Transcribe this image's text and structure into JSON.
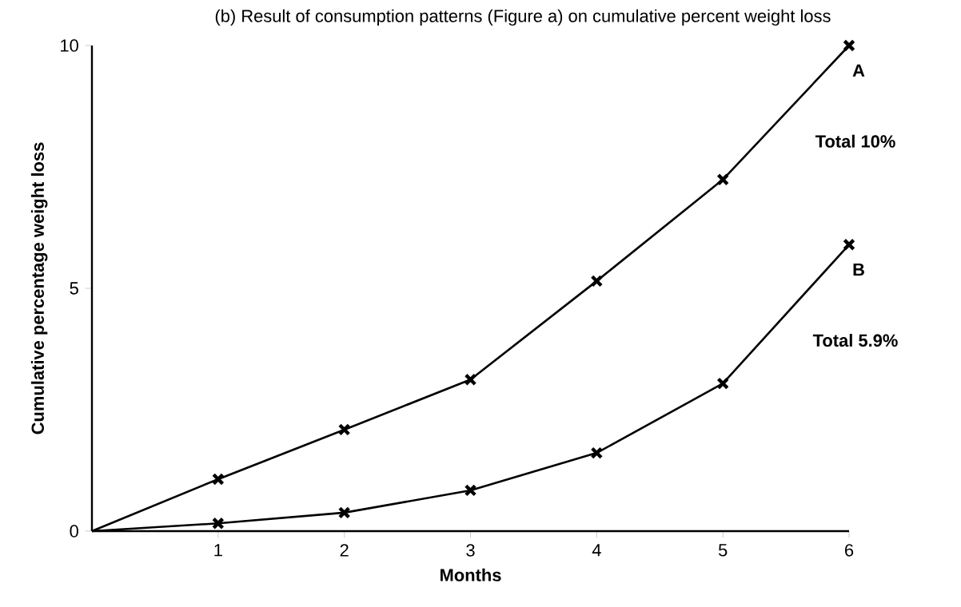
{
  "chart_data": {
    "type": "line",
    "title": "(b) Result of consumption patterns (Figure a) on cumulative percent weight loss",
    "xlabel": "Months",
    "ylabel": "Cumulative percentage weight loss",
    "x": [
      0,
      1,
      2,
      3,
      4,
      5,
      6
    ],
    "series": [
      {
        "name": "A",
        "color": "#000000",
        "values": [
          0,
          1.07,
          2.09,
          3.12,
          5.15,
          7.24,
          10.0
        ]
      },
      {
        "name": "B",
        "color": "#000000",
        "values": [
          0,
          0.16,
          0.38,
          0.84,
          1.61,
          3.04,
          5.9
        ]
      }
    ],
    "annotations": [
      "Total 10%",
      "Total 5.9%"
    ],
    "xlim": [
      0,
      6
    ],
    "ylim": [
      0,
      10
    ],
    "xticks": [
      1,
      2,
      3,
      4,
      5,
      6
    ],
    "yticks": [
      0,
      5,
      10
    ],
    "grid": false,
    "marker": "cross",
    "line_style": "solid"
  }
}
